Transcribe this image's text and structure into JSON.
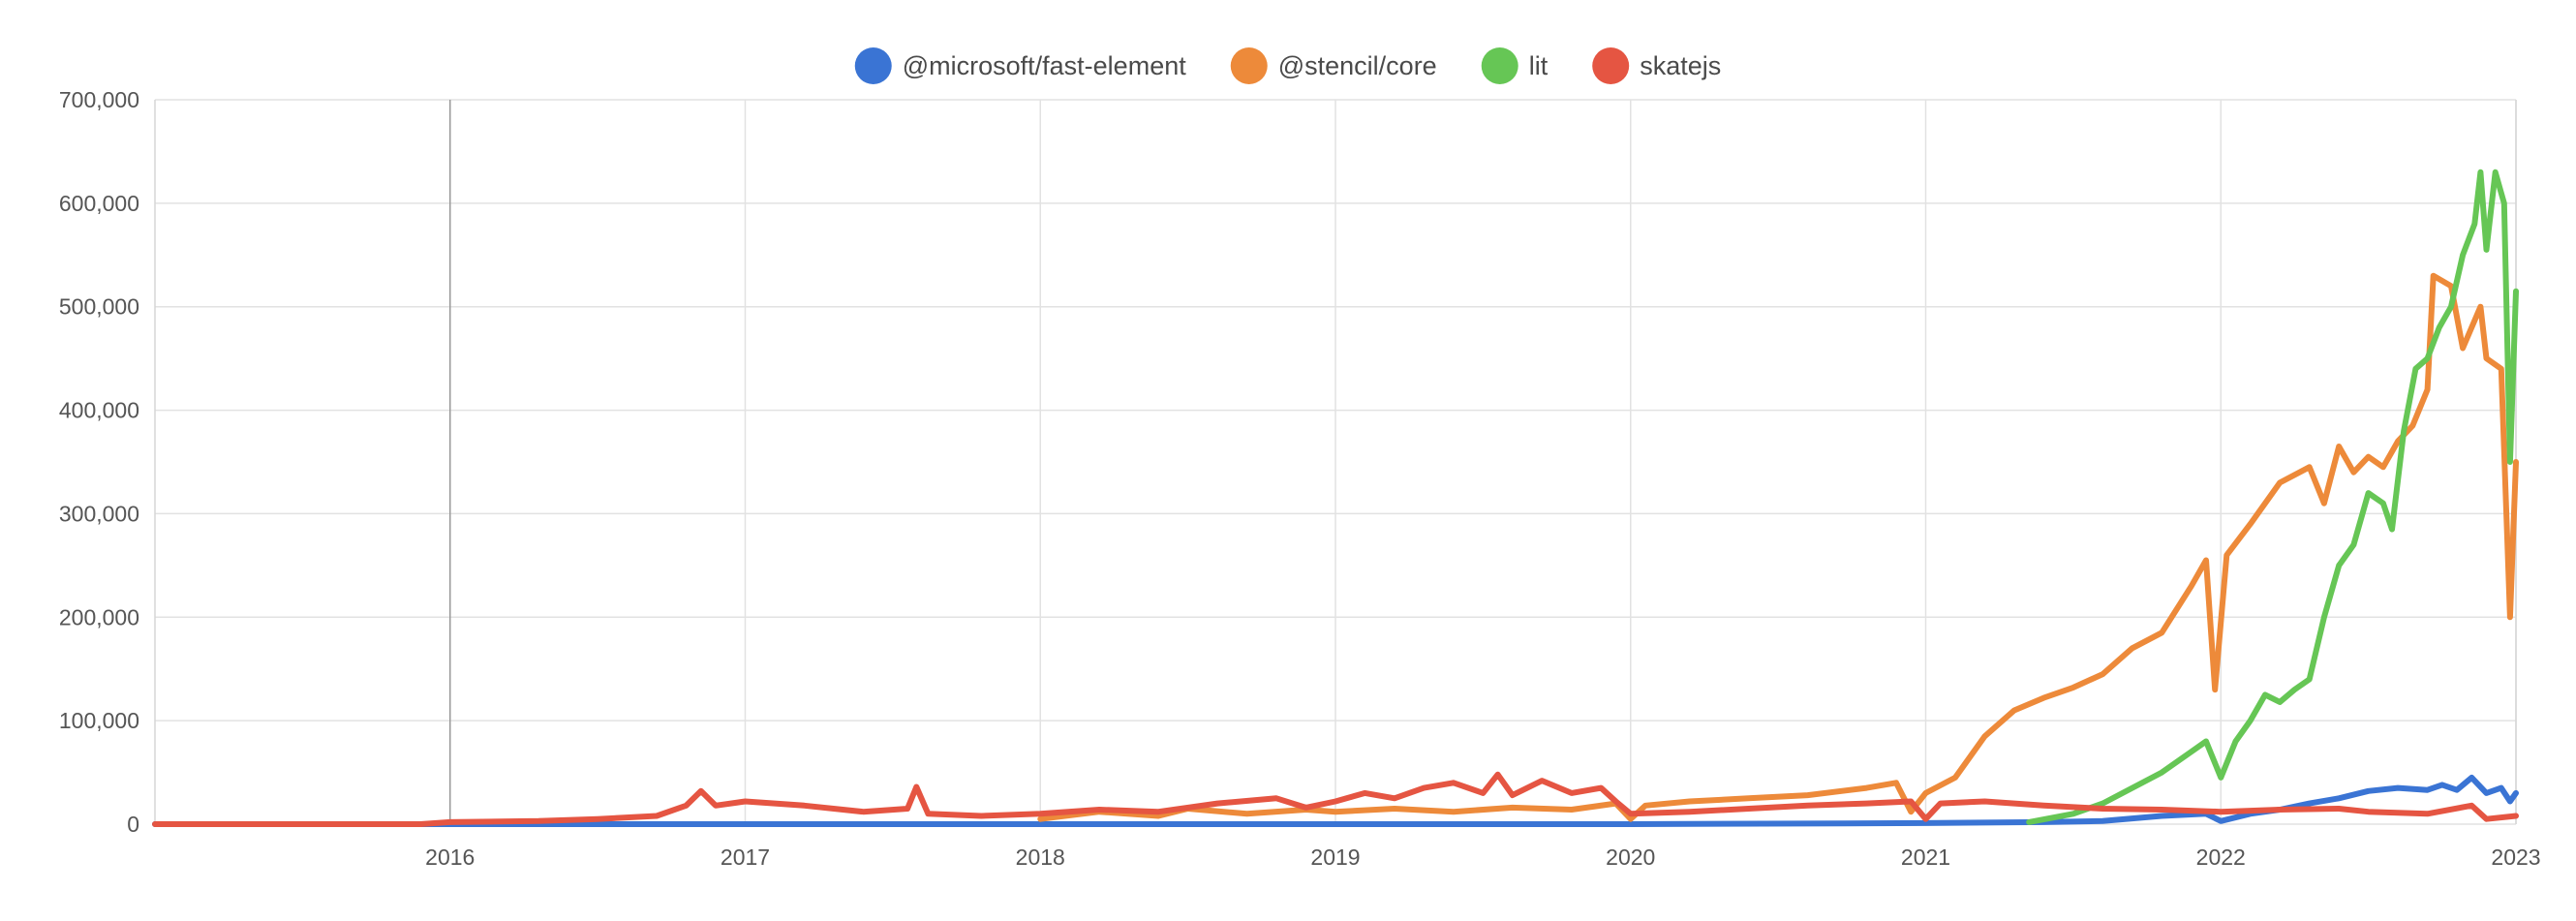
{
  "chart_data": {
    "type": "line",
    "title": "",
    "xlabel": "",
    "ylabel": "",
    "legend_position": "top-center",
    "grid": true,
    "xlim": [
      2015.0,
      2023.0
    ],
    "ylim": [
      0,
      700000
    ],
    "x_ticks": [
      2016,
      2017,
      2018,
      2019,
      2020,
      2021,
      2022,
      2023
    ],
    "x_tick_labels": [
      "2016",
      "2017",
      "2018",
      "2019",
      "2020",
      "2021",
      "2022",
      "2023"
    ],
    "y_ticks": [
      0,
      100000,
      200000,
      300000,
      400000,
      500000,
      600000,
      700000
    ],
    "y_tick_labels": [
      "0",
      "100,000",
      "200,000",
      "300,000",
      "400,000",
      "500,000",
      "600,000",
      "700,000"
    ],
    "series": [
      {
        "name": "@microsoft/fast-element",
        "color": "#3a74d4",
        "points": [
          [
            2015.0,
            0
          ],
          [
            2020.0,
            0
          ],
          [
            2021.0,
            1000
          ],
          [
            2021.4,
            2000
          ],
          [
            2021.6,
            3000
          ],
          [
            2021.8,
            8000
          ],
          [
            2021.95,
            10000
          ],
          [
            2022.0,
            3000
          ],
          [
            2022.1,
            10000
          ],
          [
            2022.2,
            14000
          ],
          [
            2022.3,
            20000
          ],
          [
            2022.4,
            25000
          ],
          [
            2022.5,
            32000
          ],
          [
            2022.6,
            35000
          ],
          [
            2022.7,
            33000
          ],
          [
            2022.75,
            38000
          ],
          [
            2022.8,
            33000
          ],
          [
            2022.85,
            45000
          ],
          [
            2022.9,
            30000
          ],
          [
            2022.95,
            35000
          ],
          [
            2022.98,
            22000
          ],
          [
            2023.0,
            30000
          ]
        ]
      },
      {
        "name": "@stencil/core",
        "color": "#ed8a3a",
        "points": [
          [
            2018.0,
            5000
          ],
          [
            2018.2,
            12000
          ],
          [
            2018.4,
            8000
          ],
          [
            2018.5,
            15000
          ],
          [
            2018.7,
            10000
          ],
          [
            2018.9,
            14000
          ],
          [
            2019.0,
            12000
          ],
          [
            2019.2,
            15000
          ],
          [
            2019.4,
            12000
          ],
          [
            2019.6,
            16000
          ],
          [
            2019.8,
            14000
          ],
          [
            2019.95,
            20000
          ],
          [
            2020.0,
            5000
          ],
          [
            2020.05,
            18000
          ],
          [
            2020.2,
            22000
          ],
          [
            2020.4,
            25000
          ],
          [
            2020.6,
            28000
          ],
          [
            2020.8,
            35000
          ],
          [
            2020.9,
            40000
          ],
          [
            2020.95,
            12000
          ],
          [
            2021.0,
            30000
          ],
          [
            2021.1,
            45000
          ],
          [
            2021.2,
            85000
          ],
          [
            2021.3,
            110000
          ],
          [
            2021.4,
            122000
          ],
          [
            2021.5,
            132000
          ],
          [
            2021.6,
            145000
          ],
          [
            2021.7,
            170000
          ],
          [
            2021.8,
            185000
          ],
          [
            2021.9,
            230000
          ],
          [
            2021.95,
            255000
          ],
          [
            2021.98,
            130000
          ],
          [
            2022.02,
            260000
          ],
          [
            2022.1,
            290000
          ],
          [
            2022.2,
            330000
          ],
          [
            2022.3,
            345000
          ],
          [
            2022.35,
            310000
          ],
          [
            2022.4,
            365000
          ],
          [
            2022.45,
            340000
          ],
          [
            2022.5,
            355000
          ],
          [
            2022.55,
            345000
          ],
          [
            2022.6,
            370000
          ],
          [
            2022.65,
            385000
          ],
          [
            2022.7,
            420000
          ],
          [
            2022.72,
            530000
          ],
          [
            2022.78,
            520000
          ],
          [
            2022.82,
            460000
          ],
          [
            2022.88,
            500000
          ],
          [
            2022.9,
            450000
          ],
          [
            2022.95,
            440000
          ],
          [
            2022.98,
            200000
          ],
          [
            2023.0,
            350000
          ]
        ]
      },
      {
        "name": "lit",
        "color": "#66c655",
        "points": [
          [
            2021.35,
            2000
          ],
          [
            2021.5,
            10000
          ],
          [
            2021.6,
            20000
          ],
          [
            2021.7,
            35000
          ],
          [
            2021.8,
            50000
          ],
          [
            2021.9,
            70000
          ],
          [
            2021.95,
            80000
          ],
          [
            2022.0,
            45000
          ],
          [
            2022.05,
            80000
          ],
          [
            2022.1,
            100000
          ],
          [
            2022.15,
            125000
          ],
          [
            2022.2,
            118000
          ],
          [
            2022.25,
            130000
          ],
          [
            2022.3,
            140000
          ],
          [
            2022.35,
            200000
          ],
          [
            2022.4,
            250000
          ],
          [
            2022.45,
            270000
          ],
          [
            2022.5,
            320000
          ],
          [
            2022.55,
            310000
          ],
          [
            2022.58,
            285000
          ],
          [
            2022.62,
            380000
          ],
          [
            2022.66,
            440000
          ],
          [
            2022.7,
            450000
          ],
          [
            2022.74,
            480000
          ],
          [
            2022.78,
            500000
          ],
          [
            2022.82,
            550000
          ],
          [
            2022.86,
            580000
          ],
          [
            2022.88,
            630000
          ],
          [
            2022.9,
            555000
          ],
          [
            2022.93,
            630000
          ],
          [
            2022.96,
            600000
          ],
          [
            2022.98,
            350000
          ],
          [
            2023.0,
            515000
          ]
        ]
      },
      {
        "name": "skatejs",
        "color": "#e55542",
        "points": [
          [
            2015.0,
            0
          ],
          [
            2015.9,
            0
          ],
          [
            2016.0,
            2000
          ],
          [
            2016.3,
            3000
          ],
          [
            2016.5,
            5000
          ],
          [
            2016.7,
            8000
          ],
          [
            2016.8,
            18000
          ],
          [
            2016.85,
            32000
          ],
          [
            2016.9,
            18000
          ],
          [
            2017.0,
            22000
          ],
          [
            2017.2,
            18000
          ],
          [
            2017.4,
            12000
          ],
          [
            2017.55,
            15000
          ],
          [
            2017.58,
            36000
          ],
          [
            2017.62,
            10000
          ],
          [
            2017.8,
            8000
          ],
          [
            2018.0,
            10000
          ],
          [
            2018.2,
            14000
          ],
          [
            2018.4,
            12000
          ],
          [
            2018.6,
            20000
          ],
          [
            2018.8,
            25000
          ],
          [
            2018.9,
            16000
          ],
          [
            2019.0,
            22000
          ],
          [
            2019.1,
            30000
          ],
          [
            2019.2,
            25000
          ],
          [
            2019.3,
            35000
          ],
          [
            2019.4,
            40000
          ],
          [
            2019.5,
            30000
          ],
          [
            2019.55,
            48000
          ],
          [
            2019.6,
            28000
          ],
          [
            2019.7,
            42000
          ],
          [
            2019.8,
            30000
          ],
          [
            2019.9,
            35000
          ],
          [
            2019.95,
            22000
          ],
          [
            2020.0,
            10000
          ],
          [
            2020.2,
            12000
          ],
          [
            2020.4,
            15000
          ],
          [
            2020.6,
            18000
          ],
          [
            2020.8,
            20000
          ],
          [
            2020.95,
            22000
          ],
          [
            2021.0,
            5000
          ],
          [
            2021.05,
            20000
          ],
          [
            2021.2,
            22000
          ],
          [
            2021.4,
            18000
          ],
          [
            2021.6,
            15000
          ],
          [
            2021.8,
            14000
          ],
          [
            2022.0,
            12000
          ],
          [
            2022.2,
            14000
          ],
          [
            2022.4,
            15000
          ],
          [
            2022.5,
            12000
          ],
          [
            2022.7,
            10000
          ],
          [
            2022.85,
            18000
          ],
          [
            2022.9,
            5000
          ],
          [
            2023.0,
            8000
          ]
        ]
      }
    ]
  }
}
